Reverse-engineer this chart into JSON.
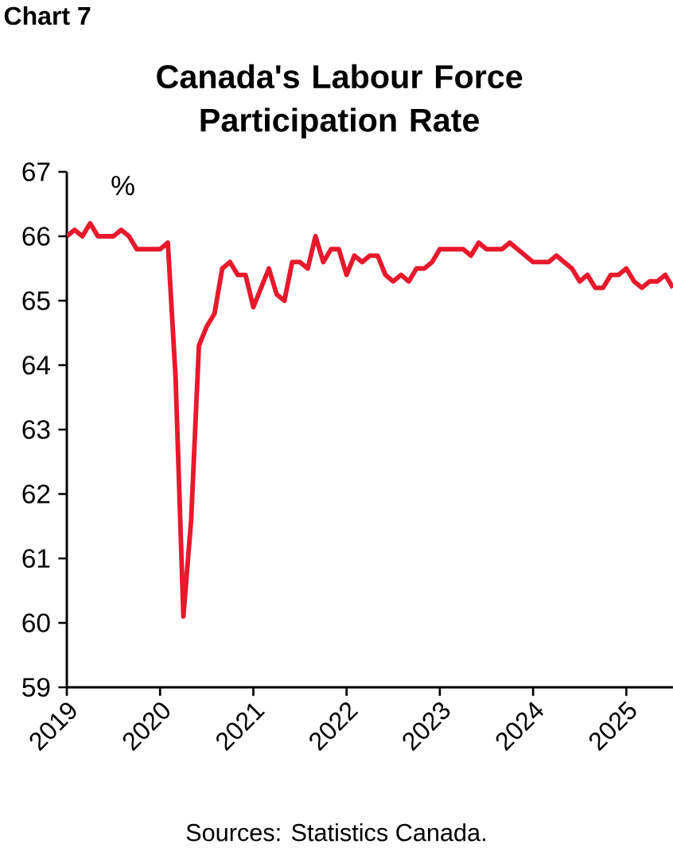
{
  "chart_data": {
    "type": "line",
    "title": "Canada's Labour Force Participation Rate",
    "ylabel": "%",
    "annotations": [
      "Chart 7",
      "Sources: Statistics Canada."
    ],
    "x": [
      "2019-01",
      "2019-02",
      "2019-03",
      "2019-04",
      "2019-05",
      "2019-06",
      "2019-07",
      "2019-08",
      "2019-09",
      "2019-10",
      "2019-11",
      "2019-12",
      "2020-01",
      "2020-02",
      "2020-03",
      "2020-04",
      "2020-05",
      "2020-06",
      "2020-07",
      "2020-08",
      "2020-09",
      "2020-10",
      "2020-11",
      "2020-12",
      "2021-01",
      "2021-02",
      "2021-03",
      "2021-04",
      "2021-05",
      "2021-06",
      "2021-07",
      "2021-08",
      "2021-09",
      "2021-10",
      "2021-11",
      "2021-12",
      "2022-01",
      "2022-02",
      "2022-03",
      "2022-04",
      "2022-05",
      "2022-06",
      "2022-07",
      "2022-08",
      "2022-09",
      "2022-10",
      "2022-11",
      "2022-12",
      "2023-01",
      "2023-02",
      "2023-03",
      "2023-04",
      "2023-05",
      "2023-06",
      "2023-07",
      "2023-08",
      "2023-09",
      "2023-10",
      "2023-11",
      "2023-12",
      "2024-01",
      "2024-02",
      "2024-03",
      "2024-04",
      "2024-05",
      "2024-06",
      "2024-07",
      "2024-08",
      "2024-09",
      "2024-10",
      "2024-11",
      "2024-12",
      "2025-01",
      "2025-02",
      "2025-03",
      "2025-04",
      "2025-05",
      "2025-06",
      "2025-07"
    ],
    "series": [
      {
        "color": "#e8192c",
        "values": [
          66.0,
          66.1,
          66.0,
          66.2,
          66.0,
          66.0,
          66.0,
          66.1,
          66.0,
          65.8,
          65.8,
          65.8,
          65.8,
          65.9,
          63.8,
          60.1,
          61.6,
          64.3,
          64.6,
          64.8,
          65.5,
          65.6,
          65.4,
          65.4,
          64.9,
          65.2,
          65.5,
          65.1,
          65.0,
          65.6,
          65.6,
          65.5,
          66.0,
          65.6,
          65.8,
          65.8,
          65.4,
          65.7,
          65.6,
          65.7,
          65.7,
          65.4,
          65.3,
          65.4,
          65.3,
          65.5,
          65.5,
          65.6,
          65.8,
          65.8,
          65.8,
          65.8,
          65.7,
          65.9,
          65.8,
          65.8,
          65.8,
          65.9,
          65.8,
          65.7,
          65.6,
          65.6,
          65.6,
          65.7,
          65.6,
          65.5,
          65.3,
          65.4,
          65.2,
          65.2,
          65.4,
          65.4,
          65.5,
          65.3,
          65.2,
          65.3,
          65.3,
          65.4,
          65.2
        ]
      }
    ],
    "xlim": [
      "2019-01",
      "2025-07"
    ],
    "xticks": [
      "2019",
      "2020",
      "2021",
      "2022",
      "2023",
      "2024",
      "2025"
    ],
    "ylim": [
      59,
      67
    ],
    "yticks": [
      59,
      60,
      61,
      62,
      63,
      64,
      65,
      66,
      67
    ],
    "grid": false,
    "legend": false,
    "marker": "none",
    "line_style": "solid"
  }
}
